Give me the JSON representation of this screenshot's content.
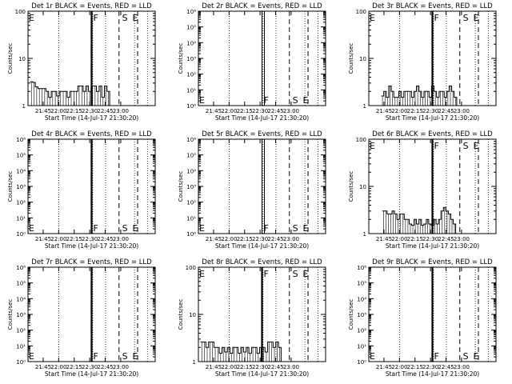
{
  "figure": {
    "xlabel": "Start Time (14-Jul-17 21:30:20)",
    "ylabel": "Counts/sec",
    "time_ticks": [
      "21:45",
      "22:00",
      "22:15",
      "22:30",
      "22:45",
      "23:00"
    ],
    "marker_letters": {
      "E": "E",
      "F": "F",
      "S": "S"
    }
  },
  "chart_data": [
    {
      "type": "line",
      "title": "Det 1r BLACK = Events, RED = LLD",
      "ylabel": "Counts/sec",
      "xlabel": "Start Time (14-Jul-17 21:30:20)",
      "yscale": "log",
      "ylim": [
        1,
        100
      ],
      "yticks": [
        "1",
        "10",
        "100"
      ],
      "series": [
        {
          "name": "Events",
          "color": "#000000",
          "level": "low",
          "start_min": 2,
          "end_min": 79,
          "values": [
            3.2,
            3.1,
            2.5,
            2.3,
            2.3,
            2.3,
            2.0,
            1.5,
            2.0,
            2.0,
            1.6,
            2.0,
            2.0,
            2.0,
            1.5,
            2.0,
            2.0,
            2.0,
            2.6,
            2.6,
            2.0,
            2.6,
            2.0,
            2.6,
            2.6,
            2.0,
            2.6,
            1.5,
            2.6,
            2.0
          ]
        }
      ]
    },
    {
      "type": "line",
      "title": "Det 2r BLACK = Events, RED = LLD",
      "ylabel": "Counts/sec",
      "xlabel": "Start Time (14-Jul-17 21:30:20)",
      "yscale": "log",
      "ylim": [
        1,
        1000000
      ],
      "yticks": [
        "10⁰",
        "10¹",
        "10²",
        "10³",
        "10⁴",
        "10⁵",
        "10⁶"
      ],
      "series": []
    },
    {
      "type": "line",
      "title": "Det 3r BLACK = Events, RED = LLD",
      "ylabel": "Counts/sec",
      "xlabel": "Start Time (14-Jul-17 21:30:20)",
      "yscale": "log",
      "ylim": [
        1,
        100
      ],
      "yticks": [
        "1",
        "10",
        "100"
      ],
      "series": [
        {
          "name": "Events",
          "color": "#000000",
          "level": "low",
          "start_min": 12,
          "end_min": 85,
          "values": [
            1.6,
            2.0,
            1.5,
            2.6,
            2.0,
            1.5,
            1.5,
            2.0,
            1.5,
            2.0,
            2.0,
            2.0,
            1.5,
            2.0,
            2.6,
            2.0,
            1.5,
            2.0,
            2.0,
            1.5,
            2.6,
            2.0,
            1.5,
            2.0,
            2.0,
            1.5,
            2.0,
            2.6,
            2.0,
            1.5
          ]
        }
      ]
    },
    {
      "type": "line",
      "title": "Det 4r BLACK = Events, RED = LLD",
      "ylabel": "Counts/sec",
      "xlabel": "Start Time (14-Jul-17 21:30:20)",
      "yscale": "log",
      "ylim": [
        1,
        1000000
      ],
      "yticks": [
        "10⁰",
        "10¹",
        "10²",
        "10³",
        "10⁴",
        "10⁵",
        "10⁶"
      ],
      "series": []
    },
    {
      "type": "line",
      "title": "Det 5r BLACK = Events, RED = LLD",
      "ylabel": "Counts/sec",
      "xlabel": "Start Time (14-Jul-17 21:30:20)",
      "yscale": "log",
      "ylim": [
        1,
        1000000
      ],
      "yticks": [
        "10⁰",
        "10¹",
        "10²",
        "10³",
        "10⁴",
        "10⁵",
        "10⁶"
      ],
      "series": []
    },
    {
      "type": "line",
      "title": "Det 6r BLACK = Events, RED = LLD",
      "ylabel": "Counts/sec",
      "xlabel": "Start Time (14-Jul-17 21:30:20)",
      "yscale": "log",
      "ylim": [
        1,
        100
      ],
      "yticks": [
        "1",
        "10",
        "100"
      ],
      "series": [
        {
          "name": "Events",
          "color": "#000000",
          "level": "low",
          "start_min": 13,
          "end_min": 84,
          "values": [
            3.0,
            3.0,
            2.6,
            2.6,
            3.0,
            2.6,
            2.0,
            2.6,
            2.6,
            2.0,
            2.0,
            1.6,
            1.5,
            2.0,
            1.6,
            2.0,
            1.5,
            1.6,
            2.0,
            1.6,
            1.5,
            2.0,
            1.6,
            2.0,
            3.0,
            3.6,
            3.0,
            2.6,
            2.0,
            1.6
          ]
        }
      ]
    },
    {
      "type": "line",
      "title": "Det 7r BLACK = Events, RED = LLD",
      "ylabel": "Counts/sec",
      "xlabel": "Start Time (14-Jul-17 21:30:20)",
      "yscale": "log",
      "ylim": [
        1,
        1000000
      ],
      "yticks": [
        "10⁰",
        "10¹",
        "10²",
        "10³",
        "10⁴",
        "10⁵",
        "10⁶"
      ],
      "series": []
    },
    {
      "type": "line",
      "title": "Det 8r BLACK = Events, RED = LLD",
      "ylabel": "Counts/sec",
      "xlabel": "Start Time (14-Jul-17 21:30:20)",
      "yscale": "log",
      "ylim": [
        1,
        100
      ],
      "yticks": [
        "1",
        "10",
        "100"
      ],
      "series": [
        {
          "name": "Events",
          "color": "#000000",
          "level": "low",
          "start_min": 2,
          "end_min": 80,
          "values": [
            2.6,
            2.6,
            2.0,
            2.6,
            2.6,
            2.0,
            2.0,
            1.5,
            2.0,
            1.6,
            2.0,
            1.5,
            2.0,
            2.0,
            1.5,
            2.0,
            1.6,
            2.0,
            1.5,
            2.0,
            2.0,
            1.5,
            2.0,
            2.0,
            1.6,
            2.6,
            2.6,
            2.0,
            2.6,
            2.0
          ]
        }
      ]
    },
    {
      "type": "line",
      "title": "Det 9r BLACK = Events, RED = LLD",
      "ylabel": "Counts/sec",
      "xlabel": "Start Time (14-Jul-17 21:30:20)",
      "yscale": "log",
      "ylim": [
        1,
        1000000
      ],
      "yticks": [
        "10⁰",
        "10¹",
        "10²",
        "10³",
        "10⁴",
        "10⁵",
        "10⁶"
      ],
      "series": []
    }
  ]
}
